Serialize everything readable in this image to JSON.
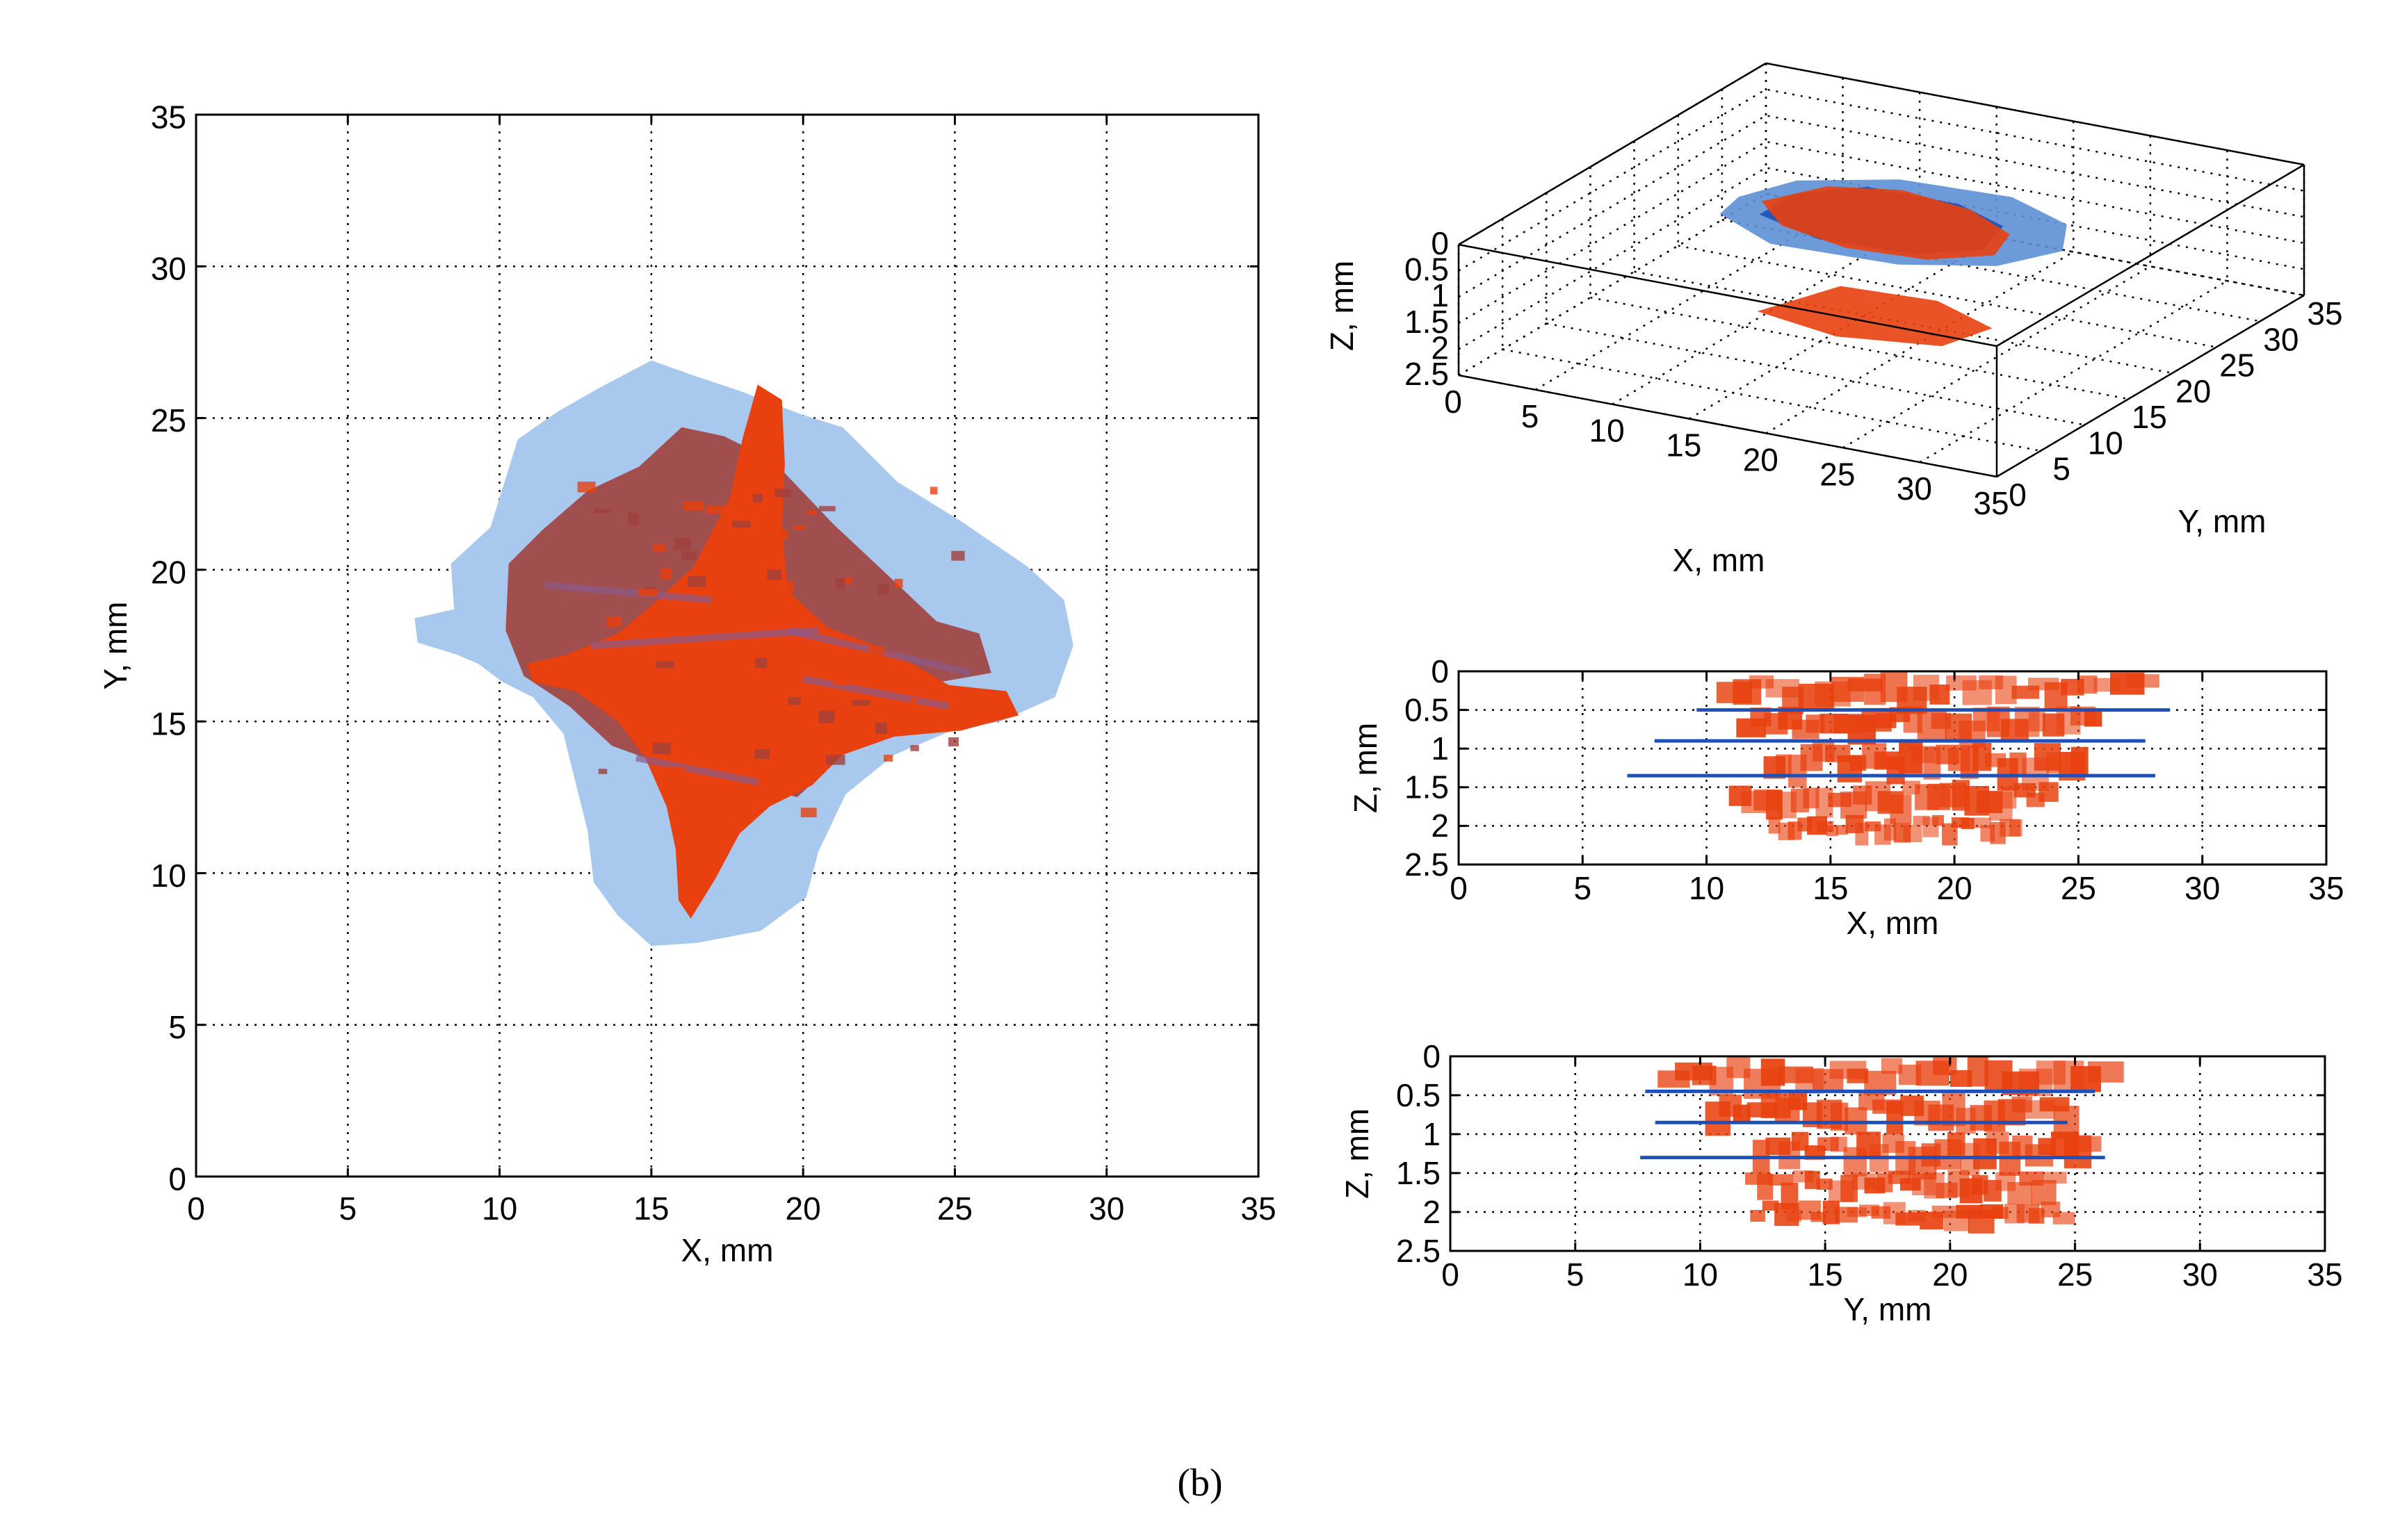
{
  "caption": "(b)",
  "colors": {
    "light_blue": "#a9c8ee",
    "mid_blue": "#5d8fd4",
    "dark_blue": "#1f4fb8",
    "orange_red": "#e8400e",
    "dark_red": "#a0403c",
    "purple": "#8d5a8a"
  },
  "chart_data": [
    {
      "id": "top-view",
      "type": "heatmap",
      "xlabel": "X, mm",
      "ylabel": "Y, mm",
      "xlim": [
        0,
        35
      ],
      "ylim": [
        0,
        35
      ],
      "xticks": [
        0,
        5,
        10,
        15,
        20,
        25,
        30,
        35
      ],
      "yticks": [
        0,
        5,
        10,
        15,
        20,
        25,
        30,
        35
      ],
      "grid": true,
      "regions": [
        {
          "name": "",
          "color": "light_blue",
          "polygon": [
            [
              7.2,
              18.4
            ],
            [
              8.5,
              18.7
            ],
            [
              8.4,
              20.2
            ],
            [
              9.7,
              21.4
            ],
            [
              10.6,
              24.3
            ],
            [
              11.9,
              25.2
            ],
            [
              13.3,
              26.0
            ],
            [
              15.0,
              26.9
            ],
            [
              16.4,
              26.4
            ],
            [
              17.9,
              25.9
            ],
            [
              20.0,
              25.1
            ],
            [
              21.3,
              24.7
            ],
            [
              23.1,
              22.9
            ],
            [
              25.2,
              21.6
            ],
            [
              27.4,
              20.1
            ],
            [
              28.6,
              19.0
            ],
            [
              28.9,
              17.5
            ],
            [
              28.3,
              15.8
            ],
            [
              26.5,
              15.0
            ],
            [
              24.9,
              14.7
            ],
            [
              23.0,
              13.9
            ],
            [
              21.4,
              12.6
            ],
            [
              20.5,
              10.7
            ],
            [
              20.1,
              9.2
            ],
            [
              18.6,
              8.1
            ],
            [
              16.5,
              7.7
            ],
            [
              15.0,
              7.6
            ],
            [
              13.9,
              8.6
            ],
            [
              13.1,
              9.7
            ],
            [
              12.9,
              11.4
            ],
            [
              12.5,
              13.0
            ],
            [
              12.1,
              14.6
            ],
            [
              11.1,
              15.8
            ],
            [
              10.1,
              16.3
            ],
            [
              9.3,
              16.9
            ],
            [
              8.6,
              17.2
            ],
            [
              7.3,
              17.6
            ]
          ]
        },
        {
          "name": "",
          "color": "dark_red",
          "polygon": [
            [
              10.3,
              20.2
            ],
            [
              11.4,
              21.3
            ],
            [
              12.9,
              22.6
            ],
            [
              14.6,
              23.4
            ],
            [
              16.0,
              24.7
            ],
            [
              17.4,
              24.4
            ],
            [
              19.0,
              23.6
            ],
            [
              21.0,
              21.5
            ],
            [
              22.6,
              20.0
            ],
            [
              24.4,
              18.3
            ],
            [
              25.8,
              17.9
            ],
            [
              26.2,
              16.6
            ],
            [
              24.5,
              16.3
            ],
            [
              22.3,
              15.1
            ],
            [
              21.0,
              13.6
            ],
            [
              19.8,
              12.5
            ],
            [
              18.2,
              13.0
            ],
            [
              15.9,
              13.4
            ],
            [
              13.7,
              14.2
            ],
            [
              12.3,
              15.5
            ],
            [
              10.8,
              16.5
            ],
            [
              10.2,
              18.0
            ]
          ]
        },
        {
          "name": "",
          "color": "orange_red",
          "polygon": [
            [
              10.9,
              16.9
            ],
            [
              12.2,
              17.2
            ],
            [
              13.9,
              17.9
            ],
            [
              15.1,
              18.9
            ],
            [
              16.4,
              20.1
            ],
            [
              17.6,
              22.4
            ],
            [
              18.0,
              24.3
            ],
            [
              18.5,
              26.1
            ],
            [
              19.3,
              25.6
            ],
            [
              19.4,
              23.5
            ],
            [
              19.3,
              21.4
            ],
            [
              19.5,
              19.3
            ],
            [
              20.8,
              18.1
            ],
            [
              22.9,
              17.3
            ],
            [
              24.8,
              16.2
            ],
            [
              26.7,
              16.0
            ],
            [
              27.1,
              15.2
            ],
            [
              25.2,
              14.7
            ],
            [
              23.0,
              14.5
            ],
            [
              21.3,
              13.9
            ],
            [
              20.3,
              12.9
            ],
            [
              18.9,
              12.2
            ],
            [
              17.9,
              11.3
            ],
            [
              17.1,
              9.8
            ],
            [
              16.3,
              8.5
            ],
            [
              15.9,
              9.1
            ],
            [
              15.8,
              10.8
            ],
            [
              15.5,
              12.2
            ],
            [
              14.8,
              13.8
            ],
            [
              13.9,
              15.0
            ],
            [
              12.5,
              16.0
            ],
            [
              11.1,
              16.3
            ]
          ]
        }
      ]
    },
    {
      "id": "3d-view",
      "type": "scatter",
      "xlabel": "X, mm",
      "ylabel": "Y, mm",
      "zlabel": "Z, mm",
      "xlim": [
        0,
        35
      ],
      "ylim": [
        0,
        35
      ],
      "zlim": [
        0,
        2.5
      ],
      "xticks": [
        0,
        5,
        10,
        15,
        20,
        25,
        30,
        35
      ],
      "yticks": [
        0,
        5,
        10,
        15,
        20,
        25,
        30,
        35
      ],
      "zticks": [
        "0",
        "0.5",
        "1",
        "1.5",
        "2",
        "2.5"
      ],
      "grid": true
    },
    {
      "id": "xz-view",
      "type": "scatter",
      "xlabel": "X, mm",
      "ylabel": "Z, mm",
      "xlim": [
        0,
        35
      ],
      "ylim": [
        0,
        2.5
      ],
      "xticks": [
        0,
        5,
        10,
        15,
        20,
        25,
        30,
        35
      ],
      "yticks": [
        "0",
        "0.5",
        "1",
        "1.5",
        "2",
        "2.5"
      ],
      "grid": true,
      "layers": [
        {
          "z": [
            0,
            0.45
          ],
          "x": [
            10.4,
            27.6
          ],
          "color": "orange_red"
        },
        {
          "z": [
            0.45,
            0.9
          ],
          "x": [
            11.2,
            25.8
          ],
          "color": "orange_red"
        },
        {
          "z": [
            0.9,
            1.4
          ],
          "x": [
            12.3,
            25.2
          ],
          "color": "orange_red"
        },
        {
          "z": [
            1.4,
            1.85
          ],
          "x": [
            10.9,
            23.9
          ],
          "color": "orange_red"
        },
        {
          "z": [
            1.85,
            2.2
          ],
          "x": [
            12.5,
            22.6
          ],
          "color": "orange_red"
        }
      ],
      "blue_lines": [
        {
          "z": 0.5,
          "x": [
            9.6,
            28.7
          ]
        },
        {
          "z": 0.9,
          "x": [
            7.9,
            27.7
          ]
        },
        {
          "z": 1.35,
          "x": [
            6.8,
            28.1
          ]
        }
      ]
    },
    {
      "id": "yz-view",
      "type": "scatter",
      "xlabel": "Y, mm",
      "ylabel": "Z, mm",
      "xlim": [
        0,
        35
      ],
      "ylim": [
        0,
        2.5
      ],
      "xticks": [
        0,
        5,
        10,
        15,
        20,
        25,
        30,
        35
      ],
      "yticks": [
        "0",
        "0.5",
        "1",
        "1.5",
        "2",
        "2.5"
      ],
      "grid": true,
      "layers": [
        {
          "z": [
            0,
            0.45
          ],
          "x": [
            8.3,
            26.2
          ],
          "color": "orange_red"
        },
        {
          "z": [
            0.45,
            0.95
          ],
          "x": [
            10.2,
            24.7
          ],
          "color": "orange_red"
        },
        {
          "z": [
            0.95,
            1.45
          ],
          "x": [
            12.1,
            25.6
          ],
          "color": "orange_red"
        },
        {
          "z": [
            1.45,
            1.85
          ],
          "x": [
            11.8,
            24.2
          ],
          "color": "orange_red"
        },
        {
          "z": [
            1.85,
            2.2
          ],
          "x": [
            12.0,
            24.6
          ],
          "color": "orange_red"
        }
      ],
      "blue_lines": [
        {
          "z": 0.45,
          "x": [
            7.8,
            25.8
          ]
        },
        {
          "z": 0.85,
          "x": [
            8.2,
            24.7
          ]
        },
        {
          "z": 1.3,
          "x": [
            7.6,
            26.2
          ]
        }
      ]
    }
  ]
}
